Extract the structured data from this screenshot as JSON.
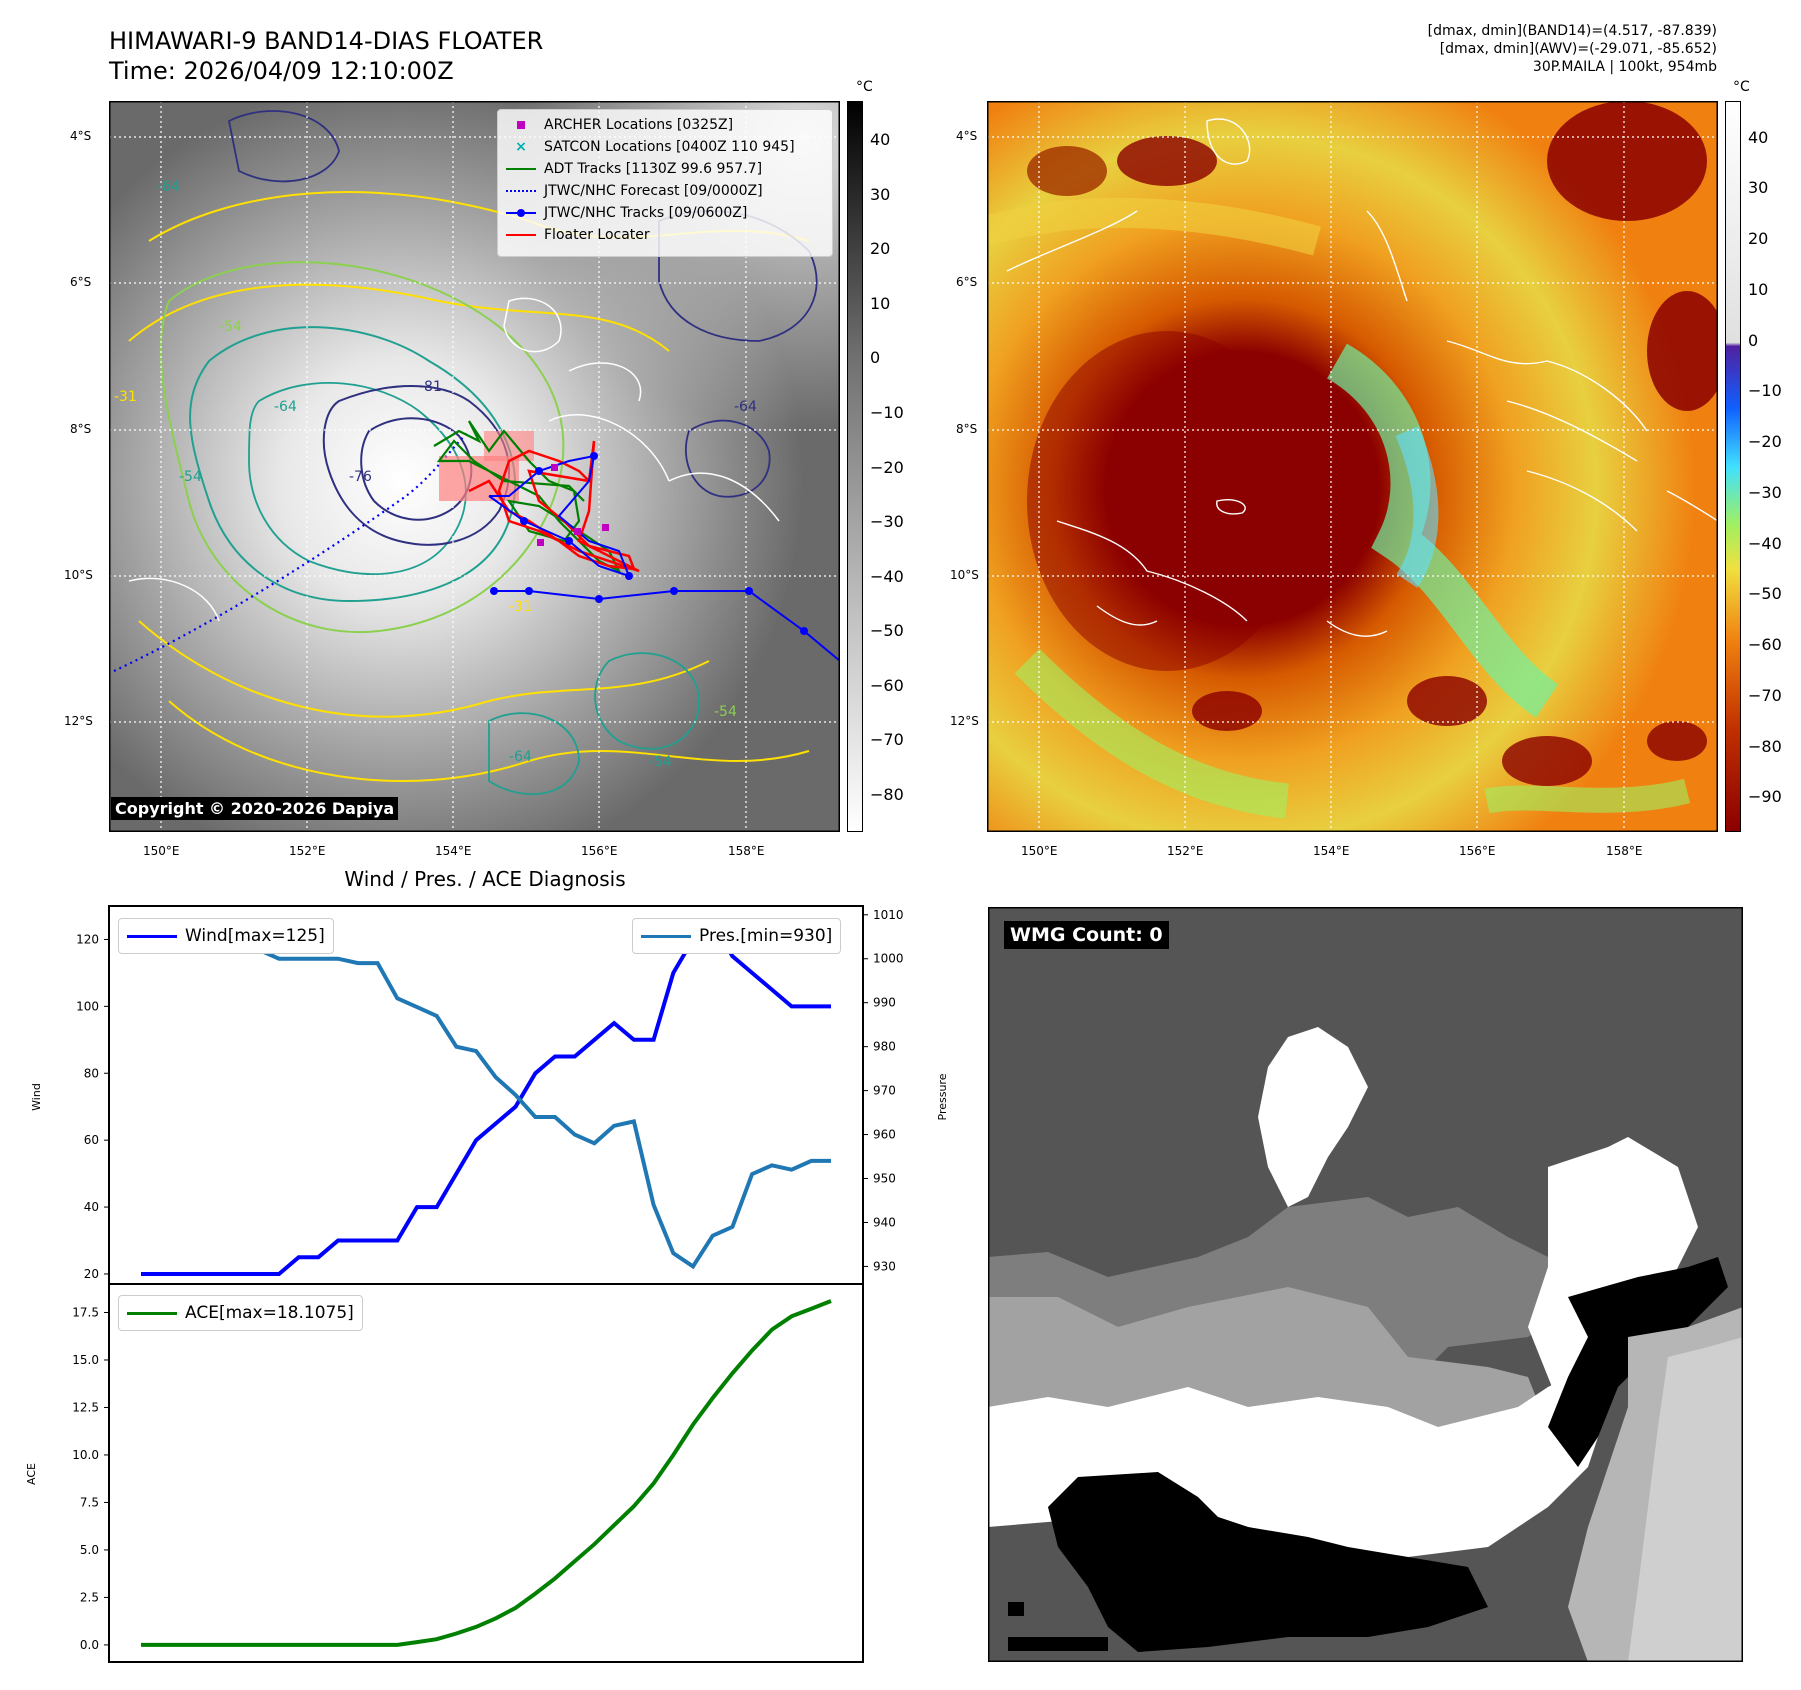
{
  "header": {
    "title_line1": "HIMAWARI-9 BAND14-DIAS FLOATER",
    "title_line2": "Time: 2026/04/09 12:10:00Z",
    "stats_line1": "[dmax, dmin](BAND14)=(4.517, -87.839)",
    "stats_line2": "[dmax, dmin](AWV)=(-29.071, -85.652)",
    "stats_line3": "30P.MAILA | 100kt, 954mb"
  },
  "map_left": {
    "lat_labels": [
      "4°S",
      "6°S",
      "8°S",
      "10°S",
      "12°S"
    ],
    "lon_labels": [
      "150°E",
      "152°E",
      "154°E",
      "156°E",
      "158°E"
    ],
    "contour_labels": [
      "-64",
      "-54",
      "-64",
      "-54",
      "-76",
      "-81",
      "-64",
      "-31",
      "-54",
      "-64",
      "-54",
      "-31"
    ],
    "legend": [
      {
        "label": "ARCHER Locations [0325Z]",
        "color": "#c000c0",
        "kind": "square"
      },
      {
        "label": "SATCON Locations [0400Z 110 945]",
        "color": "#00b0b0",
        "kind": "x"
      },
      {
        "label": "ADT Tracks [1130Z 99.6 957.7]",
        "color": "#008000",
        "kind": "line"
      },
      {
        "label": "JTWC/NHC Forecast [09/0000Z]",
        "color": "#0000ff",
        "kind": "dotted"
      },
      {
        "label": "JTWC/NHC Tracks [09/0600Z]",
        "color": "#0000ff",
        "kind": "line-dot"
      },
      {
        "label": "Floater Locater",
        "color": "#ff0000",
        "kind": "line"
      }
    ],
    "colorbar_unit": "°C",
    "colorbar_ticks": [
      "40",
      "30",
      "20",
      "10",
      "0",
      "−10",
      "−20",
      "−30",
      "−40",
      "−50",
      "−60",
      "−70",
      "−80"
    ],
    "copyright": "Copyright © 2020-2026 Dapiya"
  },
  "map_right": {
    "lat_labels": [
      "4°S",
      "6°S",
      "8°S",
      "10°S",
      "12°S"
    ],
    "lon_labels": [
      "150°E",
      "152°E",
      "154°E",
      "156°E",
      "158°E"
    ],
    "colorbar_unit": "°C",
    "colorbar_ticks": [
      "40",
      "30",
      "20",
      "10",
      "0",
      "−10",
      "−20",
      "−30",
      "−40",
      "−50",
      "−60",
      "−70",
      "−80",
      "−90"
    ]
  },
  "wmg": {
    "label": "WMG Count: 0"
  },
  "chart_data": [
    {
      "type": "line",
      "title": "Wind / Pres. / ACE Diagnosis",
      "ylabel": "Wind",
      "ylabel_right": "Pressure",
      "ylim": [
        17,
        130
      ],
      "ylim_right": [
        926,
        1012
      ],
      "yticks": [
        20,
        40,
        60,
        80,
        100,
        120
      ],
      "yticks_right": [
        930,
        940,
        950,
        960,
        970,
        980,
        990,
        1000,
        1010
      ],
      "series": [
        {
          "name": "Wind[max=125]",
          "color": "#0000ff",
          "axis": "left",
          "values": [
            20,
            20,
            20,
            20,
            20,
            20,
            20,
            20,
            25,
            25,
            30,
            30,
            30,
            30,
            40,
            40,
            50,
            60,
            65,
            70,
            80,
            85,
            85,
            90,
            95,
            90,
            90,
            110,
            120,
            125,
            115,
            110,
            105,
            100,
            100,
            100
          ]
        },
        {
          "name": "Pres.[min=930]",
          "color": "#1f77b4",
          "axis": "right",
          "values": [
            1005,
            1005,
            1005,
            1005,
            1002,
            1002,
            1002,
            1000,
            1000,
            1000,
            1000,
            999,
            999,
            991,
            989,
            987,
            980,
            979,
            973,
            969,
            964,
            964,
            960,
            958,
            962,
            963,
            944,
            933,
            930,
            937,
            939,
            951,
            953,
            952,
            954,
            954
          ]
        }
      ]
    },
    {
      "type": "line",
      "ylabel": "ACE",
      "ylim": [
        -0.9,
        19.0
      ],
      "yticks": [
        0.0,
        2.5,
        5.0,
        7.5,
        10.0,
        12.5,
        15.0,
        17.5
      ],
      "ytick_labels": [
        "0.0",
        "2.5",
        "5.0",
        "7.5",
        "10.0",
        "12.5",
        "15.0",
        "17.5"
      ],
      "series": [
        {
          "name": "ACE[max=18.1075]",
          "color": "#008000",
          "values": [
            0,
            0,
            0,
            0,
            0,
            0,
            0,
            0,
            0,
            0,
            0,
            0,
            0,
            0,
            0.15,
            0.3,
            0.6,
            0.95,
            1.4,
            1.95,
            2.7,
            3.5,
            4.4,
            5.3,
            6.3,
            7.3,
            8.5,
            10.0,
            11.6,
            13.0,
            14.3,
            15.5,
            16.6,
            17.3,
            17.7,
            18.1075
          ]
        }
      ]
    }
  ]
}
